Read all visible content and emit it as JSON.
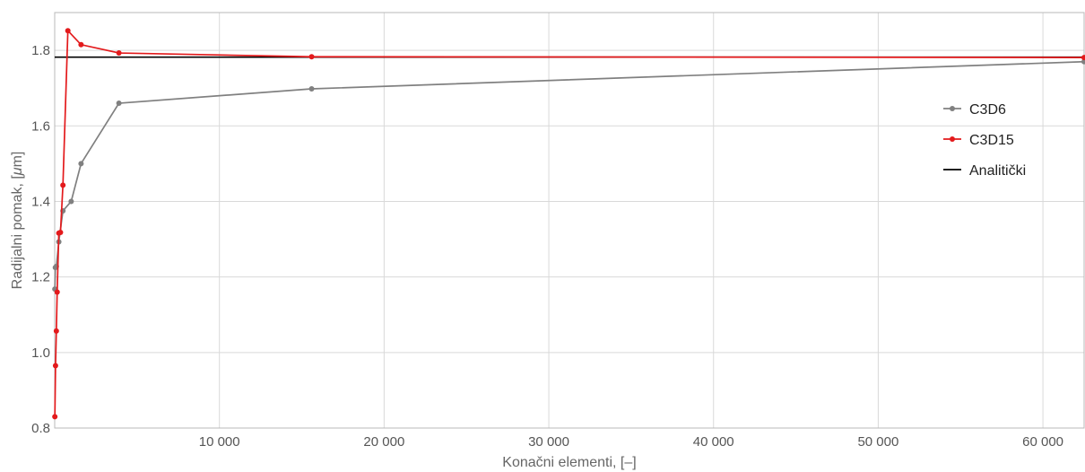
{
  "chart_data": {
    "type": "line",
    "xlabel": "Konačni elementi, [–]",
    "ylabel_prefix": "Radijalni pomak, [",
    "ylabel_mu": "μ",
    "ylabel_suffix": "m]",
    "xlim": [
      0,
      62500
    ],
    "ylim": [
      0.8,
      1.9
    ],
    "x_ticks": [
      10000,
      20000,
      30000,
      40000,
      50000,
      60000
    ],
    "x_tick_labels": [
      "10 000",
      "20 000",
      "30 000",
      "40 000",
      "50 000",
      "60 000"
    ],
    "y_ticks": [
      0.8,
      1.0,
      1.2,
      1.4,
      1.6,
      1.8
    ],
    "y_tick_labels": [
      "0.8",
      "1.0",
      "1.2",
      "1.4",
      "1.6",
      "1.8"
    ],
    "grid": true,
    "legend_position": "right",
    "series": [
      {
        "name": "C3D6",
        "color": "#808080",
        "markers": true,
        "x": [
          10,
          40,
          100,
          250,
          500,
          1000,
          1600,
          3900,
          15600,
          62500
        ],
        "y": [
          1.168,
          1.225,
          1.228,
          1.293,
          1.375,
          1.4,
          1.5,
          1.66,
          1.698,
          1.77
        ]
      },
      {
        "name": "C3D15",
        "color": "#e31a1c",
        "markers": true,
        "x": [
          10,
          50,
          100,
          150,
          250,
          350,
          500,
          800,
          1600,
          3900,
          15600,
          62500
        ],
        "y": [
          0.83,
          0.965,
          1.057,
          1.16,
          1.316,
          1.318,
          1.443,
          1.852,
          1.815,
          1.793,
          1.783,
          1.781
        ]
      },
      {
        "name": "Analitički",
        "color": "#000000",
        "markers": false,
        "x": [
          0,
          62500
        ],
        "y": [
          1.782,
          1.782
        ]
      }
    ]
  }
}
